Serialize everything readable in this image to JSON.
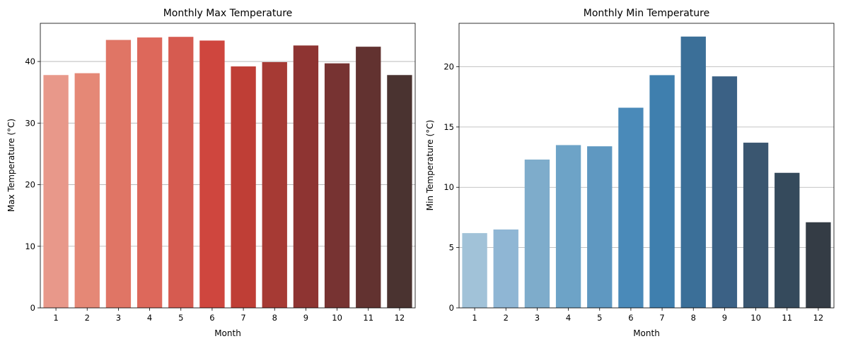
{
  "chart_data": [
    {
      "type": "bar",
      "title": "Monthly Max Temperature",
      "xlabel": "Month",
      "ylabel": "Max Temperature (°C)",
      "categories": [
        "1",
        "2",
        "3",
        "4",
        "5",
        "6",
        "7",
        "8",
        "9",
        "10",
        "11",
        "12"
      ],
      "values": [
        37.8,
        38.1,
        43.5,
        43.9,
        44.0,
        43.4,
        39.2,
        39.9,
        42.6,
        39.7,
        42.4,
        37.8
      ],
      "ylim": [
        0,
        46.2
      ],
      "yticks": [
        0,
        10,
        20,
        30,
        40
      ],
      "grid": "y",
      "colors": [
        "#e8988a",
        "#e58876",
        "#e07565",
        "#dd685b",
        "#d65b50",
        "#cf463e",
        "#bf3e36",
        "#a63a34",
        "#8e3432",
        "#773332",
        "#623230",
        "#4a3330"
      ]
    },
    {
      "type": "bar",
      "title": "Monthly Min Temperature",
      "xlabel": "Month",
      "ylabel": "Min Temperature (°C)",
      "categories": [
        "1",
        "2",
        "3",
        "4",
        "5",
        "6",
        "7",
        "8",
        "9",
        "10",
        "11",
        "12"
      ],
      "values": [
        6.2,
        6.5,
        12.3,
        13.5,
        13.4,
        16.6,
        19.3,
        22.5,
        19.2,
        13.7,
        11.2,
        7.1
      ],
      "ylim": [
        0,
        23.6
      ],
      "yticks": [
        0,
        5,
        10,
        15,
        20
      ],
      "grid": "y",
      "colors": [
        "#a1c2d8",
        "#8fb6d4",
        "#7eaccb",
        "#6da3c7",
        "#5f98c1",
        "#4a8ab9",
        "#3f7fae",
        "#3b6f98",
        "#3b6185",
        "#3a5670",
        "#354a5c",
        "#343c45"
      ]
    }
  ]
}
